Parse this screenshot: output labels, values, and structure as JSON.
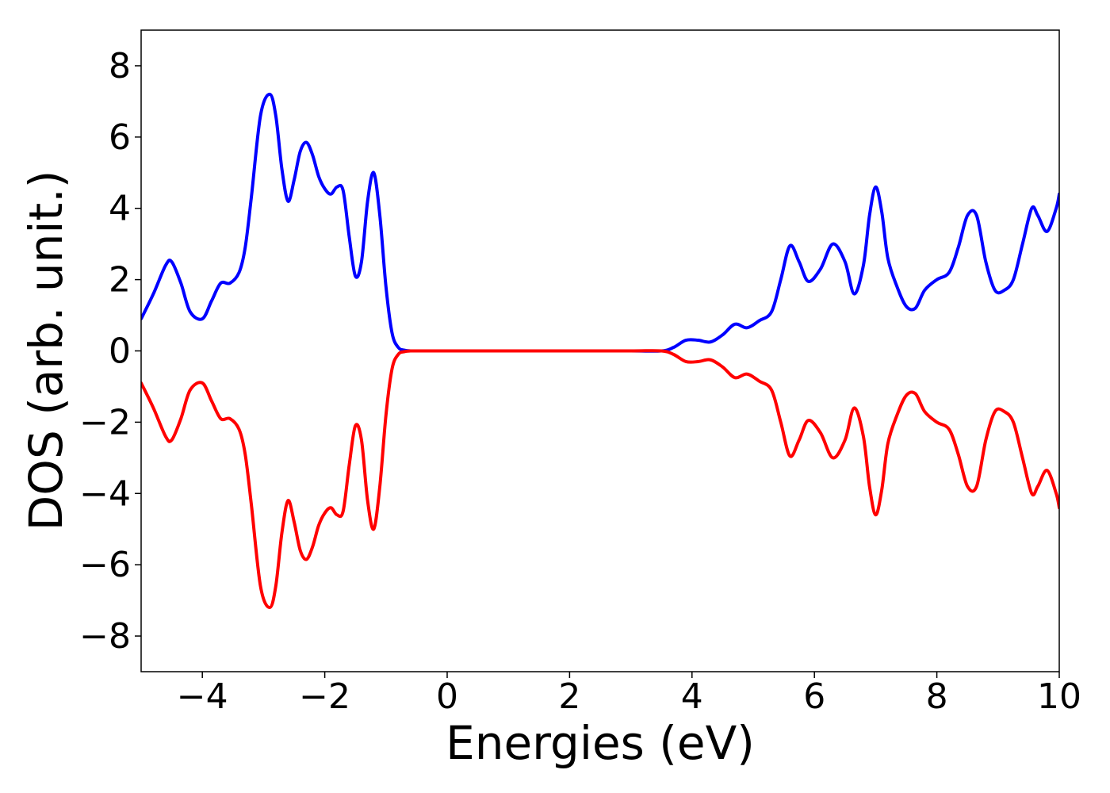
{
  "chart_data": {
    "type": "line",
    "title": "",
    "xlabel": "Energies (eV)",
    "ylabel": "DOS (arb. unit.)",
    "xlim": [
      -5,
      10
    ],
    "ylim": [
      -9,
      9
    ],
    "xticks": [
      -4,
      -2,
      0,
      2,
      4,
      6,
      8,
      10
    ],
    "yticks": [
      -8,
      -6,
      -4,
      -2,
      0,
      2,
      4,
      6,
      8
    ],
    "xtick_labels": [
      "−4",
      "−2",
      "0",
      "2",
      "4",
      "6",
      "8",
      "10"
    ],
    "ytick_labels": [
      "−8",
      "−6",
      "−4",
      "−2",
      "0",
      "2",
      "4",
      "6",
      "8"
    ],
    "grid": false,
    "legend": "none",
    "series": [
      {
        "color": "#0000ff",
        "x": [
          -5.0,
          -4.8,
          -4.6,
          -4.5,
          -4.35,
          -4.2,
          -4.0,
          -3.85,
          -3.7,
          -3.55,
          -3.4,
          -3.3,
          -3.2,
          -3.05,
          -2.9,
          -2.8,
          -2.7,
          -2.6,
          -2.5,
          -2.4,
          -2.3,
          -2.2,
          -2.1,
          -2.0,
          -1.9,
          -1.8,
          -1.7,
          -1.6,
          -1.5,
          -1.4,
          -1.3,
          -1.2,
          -1.1,
          -1.0,
          -0.9,
          -0.8,
          -0.7,
          -0.6,
          -0.5,
          -0.4,
          0.0,
          1.0,
          2.0,
          3.0,
          3.5,
          3.7,
          3.9,
          4.1,
          4.3,
          4.5,
          4.7,
          4.9,
          5.1,
          5.3,
          5.45,
          5.6,
          5.75,
          5.9,
          6.1,
          6.3,
          6.5,
          6.65,
          6.8,
          6.9,
          7.0,
          7.1,
          7.2,
          7.35,
          7.5,
          7.65,
          7.8,
          8.0,
          8.2,
          8.35,
          8.5,
          8.65,
          8.8,
          8.95,
          9.1,
          9.25,
          9.4,
          9.55,
          9.65,
          9.8,
          9.95,
          10.0
        ],
        "y": [
          0.9,
          1.6,
          2.4,
          2.5,
          1.9,
          1.1,
          0.9,
          1.4,
          1.9,
          1.9,
          2.2,
          2.9,
          4.3,
          6.6,
          7.2,
          6.6,
          5.1,
          4.2,
          4.8,
          5.6,
          5.85,
          5.5,
          4.9,
          4.55,
          4.4,
          4.6,
          4.5,
          3.2,
          2.1,
          2.5,
          4.2,
          5.0,
          3.8,
          1.8,
          0.5,
          0.1,
          0.02,
          0.0,
          0.0,
          0.0,
          0.0,
          0.0,
          0.0,
          0.0,
          0.0,
          0.1,
          0.3,
          0.3,
          0.25,
          0.45,
          0.75,
          0.65,
          0.85,
          1.1,
          2.0,
          2.95,
          2.5,
          1.95,
          2.3,
          3.0,
          2.5,
          1.6,
          2.4,
          3.8,
          4.6,
          3.9,
          2.6,
          1.8,
          1.25,
          1.2,
          1.7,
          2.0,
          2.2,
          2.9,
          3.8,
          3.8,
          2.5,
          1.7,
          1.7,
          2.0,
          3.0,
          4.0,
          3.8,
          3.35,
          4.0,
          4.4
        ]
      },
      {
        "color": "#ff0000",
        "x": [
          -5.0,
          -4.8,
          -4.6,
          -4.5,
          -4.35,
          -4.2,
          -4.0,
          -3.85,
          -3.7,
          -3.55,
          -3.4,
          -3.3,
          -3.2,
          -3.05,
          -2.9,
          -2.8,
          -2.7,
          -2.6,
          -2.5,
          -2.4,
          -2.3,
          -2.2,
          -2.1,
          -2.0,
          -1.9,
          -1.8,
          -1.7,
          -1.6,
          -1.5,
          -1.4,
          -1.3,
          -1.2,
          -1.1,
          -1.0,
          -0.9,
          -0.8,
          -0.7,
          -0.6,
          -0.5,
          -0.4,
          0.0,
          1.0,
          2.0,
          3.0,
          3.5,
          3.7,
          3.9,
          4.1,
          4.3,
          4.5,
          4.7,
          4.9,
          5.1,
          5.3,
          5.45,
          5.6,
          5.75,
          5.9,
          6.1,
          6.3,
          6.5,
          6.65,
          6.8,
          6.9,
          7.0,
          7.1,
          7.2,
          7.35,
          7.5,
          7.65,
          7.8,
          8.0,
          8.2,
          8.35,
          8.5,
          8.65,
          8.8,
          8.95,
          9.1,
          9.25,
          9.4,
          9.55,
          9.65,
          9.8,
          9.95,
          10.0
        ],
        "y": [
          -0.9,
          -1.6,
          -2.4,
          -2.5,
          -1.9,
          -1.1,
          -0.9,
          -1.4,
          -1.9,
          -1.9,
          -2.2,
          -2.9,
          -4.3,
          -6.6,
          -7.2,
          -6.6,
          -5.1,
          -4.2,
          -4.8,
          -5.6,
          -5.85,
          -5.5,
          -4.9,
          -4.55,
          -4.4,
          -4.6,
          -4.5,
          -3.2,
          -2.1,
          -2.5,
          -4.2,
          -5.0,
          -3.8,
          -1.8,
          -0.5,
          -0.1,
          -0.02,
          0.0,
          0.0,
          0.0,
          0.0,
          0.0,
          0.0,
          0.0,
          0.0,
          -0.1,
          -0.3,
          -0.3,
          -0.25,
          -0.45,
          -0.75,
          -0.65,
          -0.85,
          -1.1,
          -2.0,
          -2.95,
          -2.5,
          -1.95,
          -2.3,
          -3.0,
          -2.5,
          -1.6,
          -2.4,
          -3.8,
          -4.6,
          -3.9,
          -2.6,
          -1.8,
          -1.25,
          -1.2,
          -1.7,
          -2.0,
          -2.2,
          -2.9,
          -3.8,
          -3.8,
          -2.5,
          -1.7,
          -1.7,
          -2.0,
          -3.0,
          -4.0,
          -3.8,
          -3.35,
          -4.0,
          -4.4
        ]
      }
    ]
  }
}
